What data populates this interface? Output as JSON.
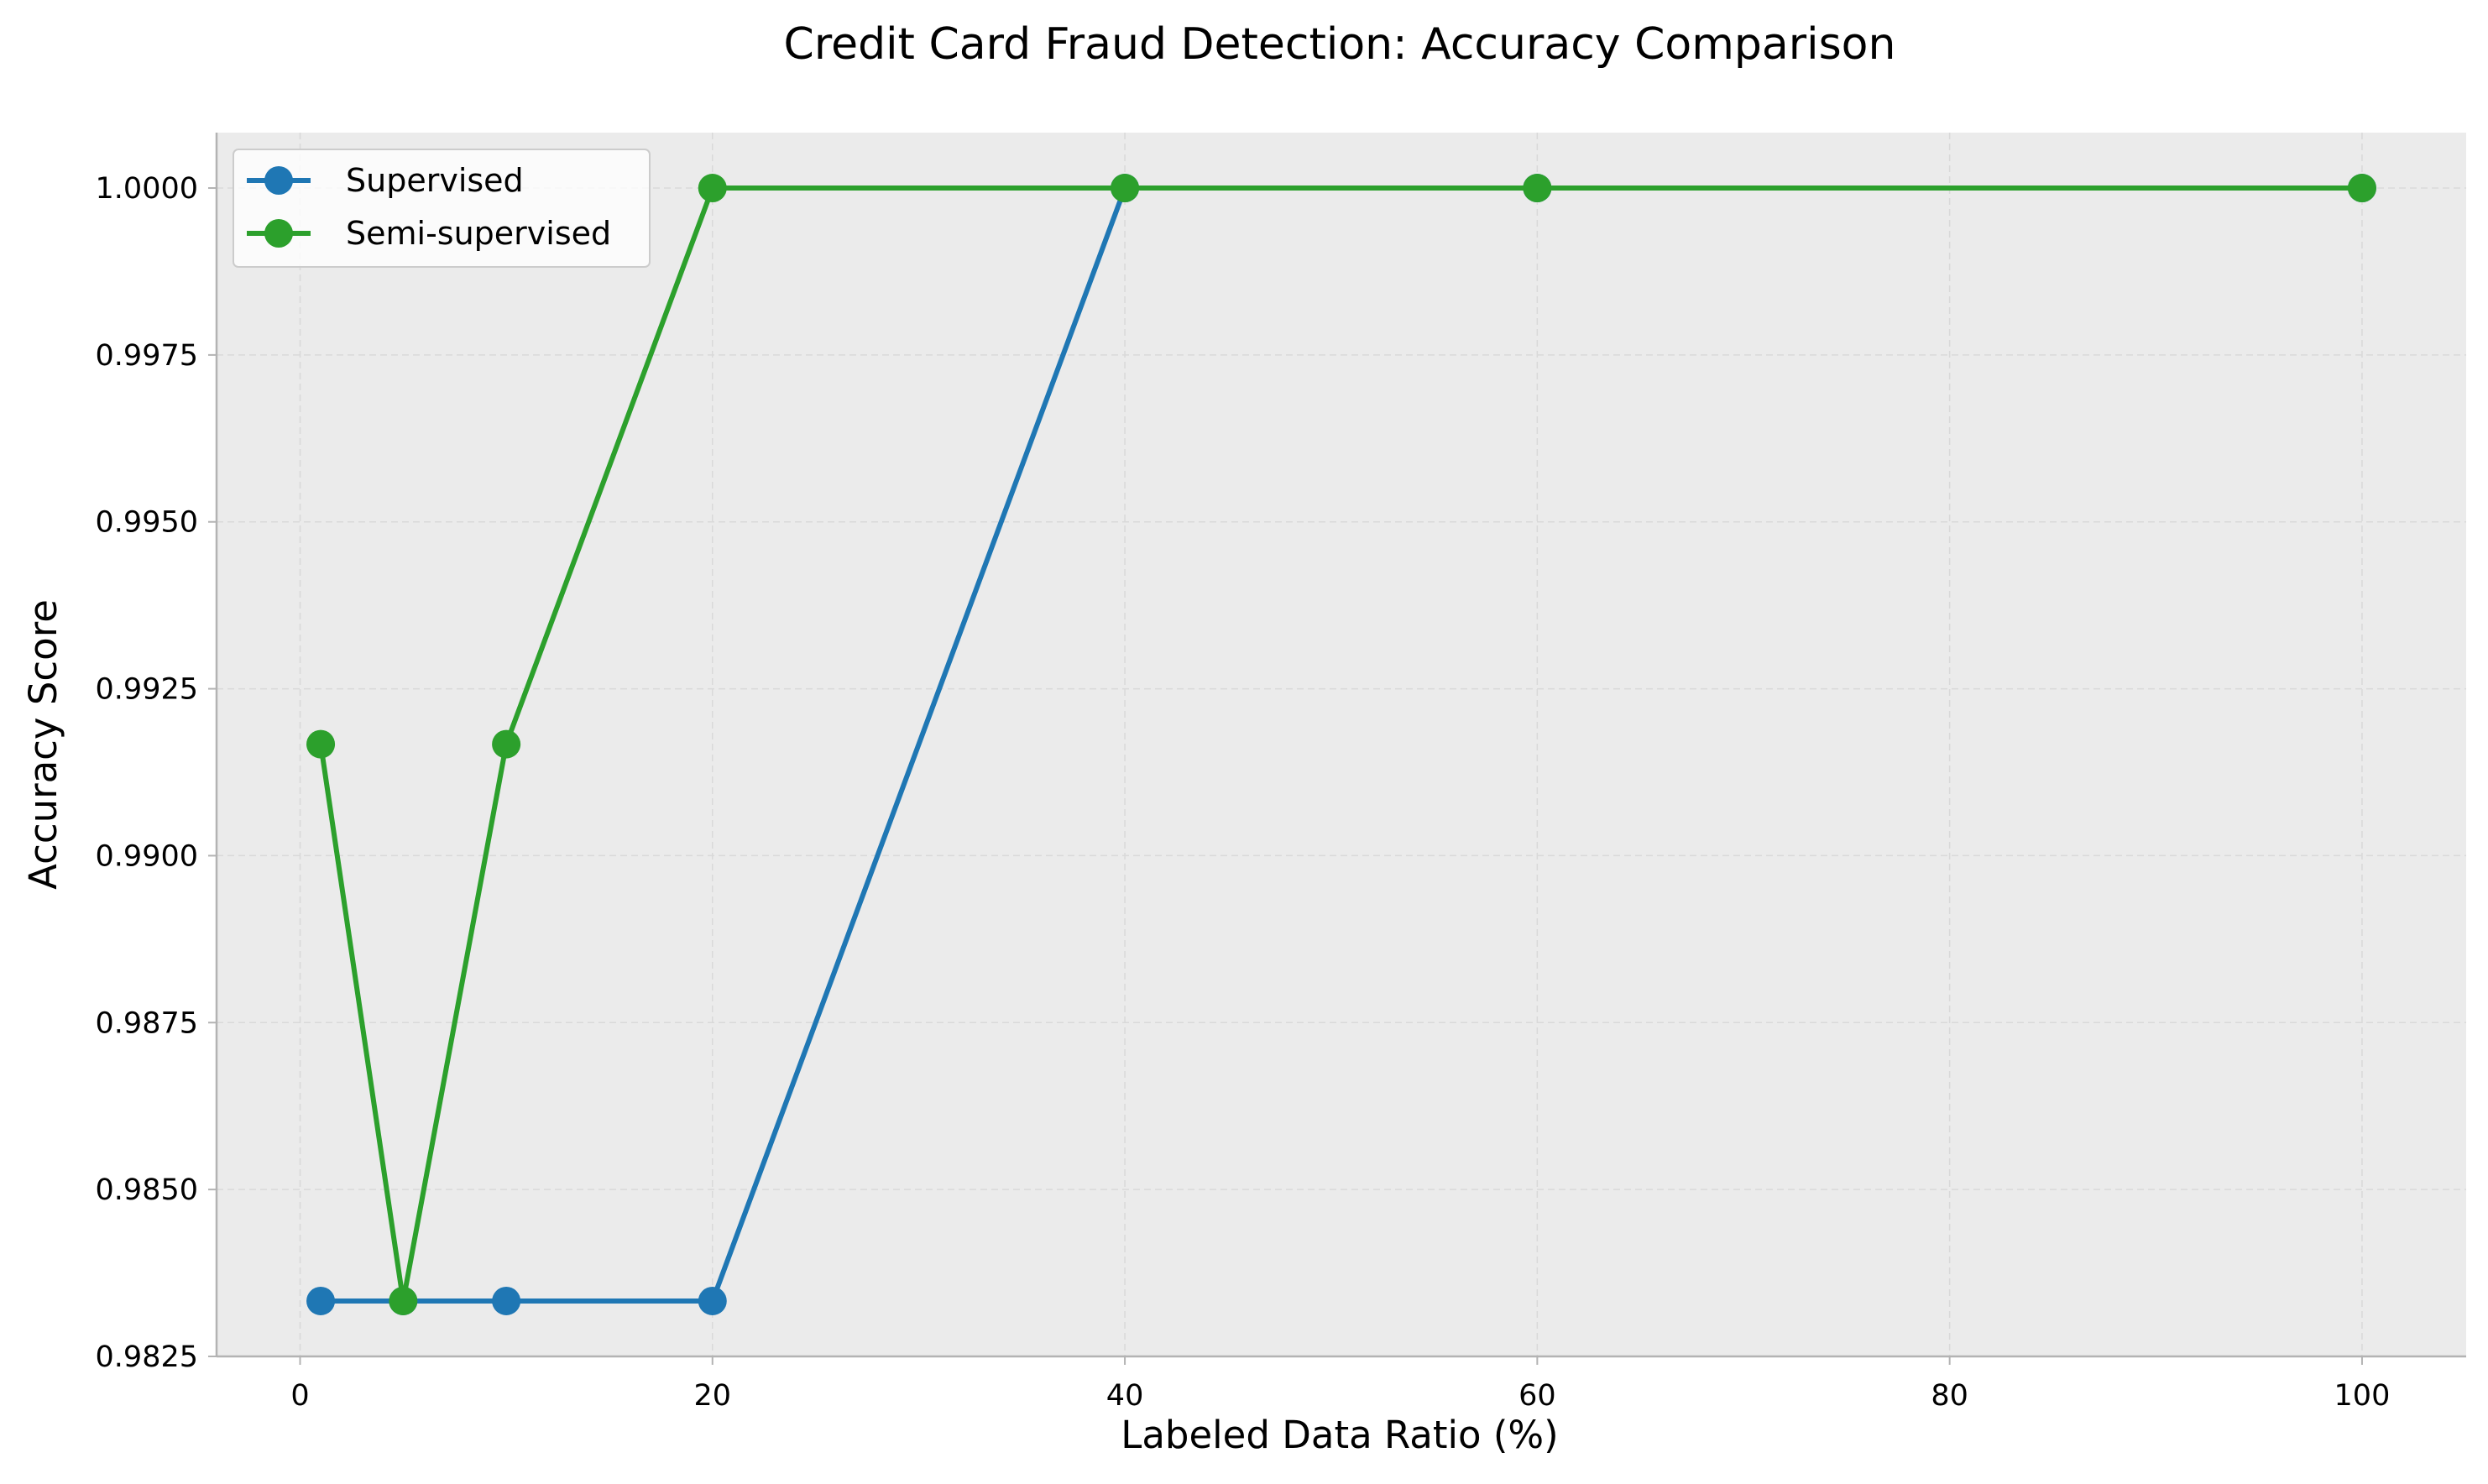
{
  "chart_data": {
    "type": "line",
    "title": "Credit Card Fraud Detection: Accuracy Comparison",
    "xlabel": "Labeled Data Ratio (%)",
    "ylabel": "Accuracy Score",
    "xlim": [
      -4.05,
      105.05
    ],
    "ylim": [
      0.9825,
      1.00083
    ],
    "xticks": [
      0,
      20,
      40,
      60,
      80,
      100
    ],
    "xtick_labels": [
      "0",
      "20",
      "40",
      "60",
      "80",
      "100"
    ],
    "yticks": [
      0.9825,
      0.985,
      0.9875,
      0.99,
      0.9925,
      0.995,
      0.9975,
      1.0
    ],
    "ytick_labels": [
      "0.9825",
      "0.9850",
      "0.9875",
      "0.9900",
      "0.9925",
      "0.9950",
      "0.9975",
      "1.0000"
    ],
    "grid": true,
    "legend_position": "top-left",
    "x": [
      1,
      5,
      10,
      20,
      40,
      60,
      100
    ],
    "series": [
      {
        "name": "Supervised",
        "color": "#1f77b4",
        "values": [
          0.98333,
          0.98333,
          0.98333,
          0.98333,
          1.0,
          1.0,
          1.0
        ]
      },
      {
        "name": "Semi-supervised",
        "color": "#2ca02c",
        "values": [
          0.99167,
          0.98333,
          0.99167,
          1.0,
          1.0,
          1.0,
          1.0
        ]
      }
    ],
    "colors": {
      "plot_background": "#ebebeb",
      "grid": "#d9d9d9",
      "axis": "#b3b3b3"
    }
  }
}
